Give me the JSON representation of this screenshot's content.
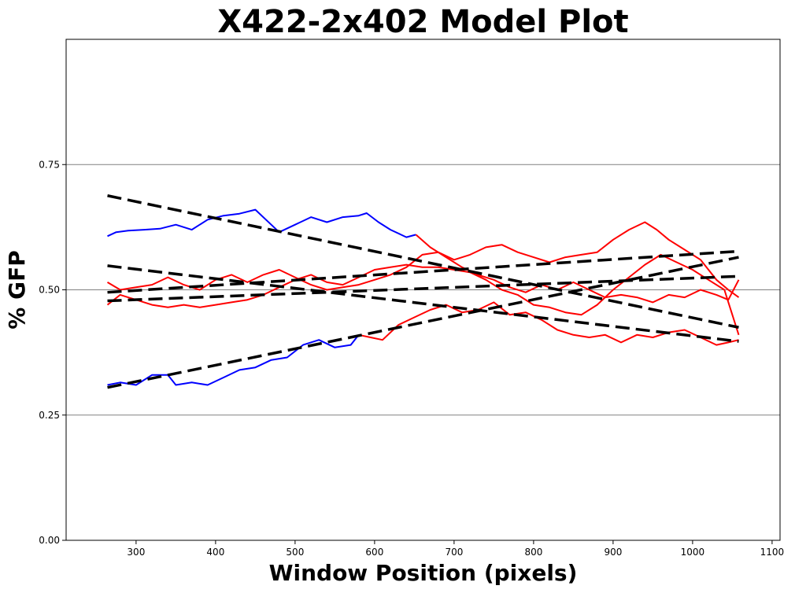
{
  "chart_data": {
    "type": "line",
    "title": "X422-2x402 Model Plot",
    "xlabel": "Window Position (pixels)",
    "ylabel": "% GFP",
    "xlim": [
      212,
      1110
    ],
    "ylim": [
      0,
      1.0
    ],
    "xticks": [
      "300",
      "400",
      "500",
      "600",
      "700",
      "800",
      "900",
      "1000",
      "1100"
    ],
    "xtick_values": [
      300,
      400,
      500,
      600,
      700,
      800,
      900,
      1000,
      1100
    ],
    "yticks": [
      "0.00",
      "0.25",
      "0.50",
      "0.75"
    ],
    "ytick_values": [
      0,
      0.25,
      0.5,
      0.75
    ],
    "horizontal_grid": [
      0.25,
      0.5,
      0.75
    ],
    "colors": {
      "blue": "#0000ff",
      "red": "#ff0000",
      "fit": "#000000",
      "grid": "#808080"
    },
    "series": [
      {
        "color": "blue",
        "segments": [
          {
            "color": "blue",
            "points": [
              [
                264,
                0.607
              ],
              [
                275,
                0.615
              ],
              [
                290,
                0.618
              ],
              [
                310,
                0.62
              ],
              [
                330,
                0.622
              ],
              [
                350,
                0.63
              ],
              [
                370,
                0.62
              ],
              [
                390,
                0.64
              ],
              [
                410,
                0.648
              ],
              [
                430,
                0.652
              ],
              [
                450,
                0.66
              ],
              [
                470,
                0.63
              ],
              [
                480,
                0.615
              ],
              [
                500,
                0.63
              ],
              [
                520,
                0.645
              ],
              [
                540,
                0.635
              ],
              [
                560,
                0.645
              ],
              [
                580,
                0.648
              ],
              [
                590,
                0.653
              ],
              [
                605,
                0.635
              ],
              [
                620,
                0.62
              ],
              [
                640,
                0.605
              ],
              [
                652,
                0.61
              ]
            ]
          },
          {
            "color": "red",
            "points": [
              [
                652,
                0.61
              ],
              [
                670,
                0.585
              ],
              [
                690,
                0.565
              ],
              [
                710,
                0.545
              ],
              [
                730,
                0.53
              ],
              [
                750,
                0.52
              ],
              [
                770,
                0.505
              ],
              [
                790,
                0.495
              ],
              [
                810,
                0.51
              ],
              [
                830,
                0.5
              ],
              [
                850,
                0.515
              ],
              [
                870,
                0.5
              ],
              [
                890,
                0.485
              ],
              [
                910,
                0.49
              ],
              [
                930,
                0.485
              ],
              [
                950,
                0.475
              ],
              [
                970,
                0.49
              ],
              [
                990,
                0.485
              ],
              [
                1010,
                0.5
              ],
              [
                1030,
                0.49
              ],
              [
                1045,
                0.48
              ],
              [
                1058,
                0.52
              ]
            ]
          }
        ]
      },
      {
        "color": "blue",
        "segments": [
          {
            "color": "blue",
            "points": [
              [
                264,
                0.31
              ],
              [
                280,
                0.315
              ],
              [
                300,
                0.31
              ],
              [
                320,
                0.33
              ],
              [
                340,
                0.33
              ],
              [
                350,
                0.31
              ],
              [
                370,
                0.315
              ],
              [
                390,
                0.31
              ],
              [
                410,
                0.325
              ],
              [
                430,
                0.34
              ],
              [
                450,
                0.345
              ],
              [
                470,
                0.36
              ],
              [
                490,
                0.365
              ],
              [
                510,
                0.39
              ],
              [
                530,
                0.4
              ],
              [
                550,
                0.385
              ],
              [
                570,
                0.39
              ],
              [
                580,
                0.41
              ]
            ]
          },
          {
            "color": "red",
            "points": [
              [
                580,
                0.41
              ],
              [
                595,
                0.405
              ],
              [
                610,
                0.4
              ],
              [
                630,
                0.43
              ],
              [
                650,
                0.445
              ],
              [
                670,
                0.46
              ],
              [
                690,
                0.47
              ],
              [
                710,
                0.455
              ],
              [
                730,
                0.46
              ],
              [
                750,
                0.475
              ],
              [
                770,
                0.45
              ],
              [
                790,
                0.455
              ],
              [
                810,
                0.44
              ],
              [
                830,
                0.42
              ],
              [
                850,
                0.41
              ],
              [
                870,
                0.405
              ],
              [
                890,
                0.41
              ],
              [
                910,
                0.395
              ],
              [
                930,
                0.41
              ],
              [
                950,
                0.405
              ],
              [
                970,
                0.415
              ],
              [
                990,
                0.42
              ],
              [
                1010,
                0.405
              ],
              [
                1030,
                0.39
              ],
              [
                1045,
                0.395
              ],
              [
                1058,
                0.4
              ]
            ]
          }
        ]
      },
      {
        "color": "red",
        "segments": [
          {
            "color": "red",
            "points": [
              [
                264,
                0.515
              ],
              [
                280,
                0.5
              ],
              [
                300,
                0.505
              ],
              [
                320,
                0.51
              ],
              [
                340,
                0.525
              ],
              [
                360,
                0.51
              ],
              [
                380,
                0.5
              ],
              [
                400,
                0.52
              ],
              [
                420,
                0.53
              ],
              [
                440,
                0.515
              ],
              [
                460,
                0.53
              ],
              [
                480,
                0.54
              ],
              [
                500,
                0.525
              ],
              [
                520,
                0.51
              ],
              [
                540,
                0.5
              ],
              [
                560,
                0.505
              ],
              [
                580,
                0.51
              ],
              [
                600,
                0.52
              ],
              [
                620,
                0.53
              ],
              [
                640,
                0.545
              ],
              [
                660,
                0.57
              ],
              [
                680,
                0.575
              ],
              [
                700,
                0.56
              ],
              [
                720,
                0.57
              ],
              [
                740,
                0.585
              ],
              [
                760,
                0.59
              ],
              [
                780,
                0.575
              ],
              [
                800,
                0.565
              ],
              [
                820,
                0.555
              ],
              [
                840,
                0.565
              ],
              [
                860,
                0.57
              ],
              [
                880,
                0.575
              ],
              [
                900,
                0.6
              ],
              [
                920,
                0.62
              ],
              [
                940,
                0.635
              ],
              [
                955,
                0.62
              ],
              [
                970,
                0.6
              ],
              [
                990,
                0.58
              ],
              [
                1010,
                0.56
              ],
              [
                1030,
                0.52
              ],
              [
                1045,
                0.5
              ],
              [
                1058,
                0.485
              ]
            ]
          }
        ]
      },
      {
        "color": "red",
        "segments": [
          {
            "color": "red",
            "points": [
              [
                264,
                0.47
              ],
              [
                280,
                0.49
              ],
              [
                300,
                0.48
              ],
              [
                320,
                0.47
              ],
              [
                340,
                0.465
              ],
              [
                360,
                0.47
              ],
              [
                380,
                0.465
              ],
              [
                400,
                0.47
              ],
              [
                420,
                0.475
              ],
              [
                440,
                0.48
              ],
              [
                460,
                0.49
              ],
              [
                480,
                0.505
              ],
              [
                500,
                0.52
              ],
              [
                520,
                0.53
              ],
              [
                540,
                0.515
              ],
              [
                560,
                0.51
              ],
              [
                580,
                0.525
              ],
              [
                600,
                0.54
              ],
              [
                620,
                0.545
              ],
              [
                640,
                0.55
              ],
              [
                660,
                0.545
              ],
              [
                680,
                0.545
              ],
              [
                700,
                0.54
              ],
              [
                720,
                0.535
              ],
              [
                740,
                0.52
              ],
              [
                760,
                0.5
              ],
              [
                780,
                0.49
              ],
              [
                800,
                0.47
              ],
              [
                820,
                0.465
              ],
              [
                840,
                0.455
              ],
              [
                860,
                0.45
              ],
              [
                880,
                0.47
              ],
              [
                900,
                0.5
              ],
              [
                920,
                0.525
              ],
              [
                940,
                0.55
              ],
              [
                960,
                0.57
              ],
              [
                980,
                0.555
              ],
              [
                1000,
                0.54
              ],
              [
                1020,
                0.52
              ],
              [
                1040,
                0.5
              ],
              [
                1058,
                0.41
              ]
            ]
          }
        ]
      }
    ],
    "fit_lines": [
      {
        "from": [
          264,
          0.688
        ],
        "to": [
          1058,
          0.425
        ]
      },
      {
        "from": [
          264,
          0.305
        ],
        "to": [
          1058,
          0.565
        ]
      },
      {
        "from": [
          264,
          0.548
        ],
        "to": [
          1058,
          0.397
        ]
      },
      {
        "from": [
          264,
          0.495
        ],
        "to": [
          1058,
          0.577
        ]
      },
      {
        "from": [
          264,
          0.478
        ],
        "to": [
          1058,
          0.527
        ]
      }
    ]
  }
}
